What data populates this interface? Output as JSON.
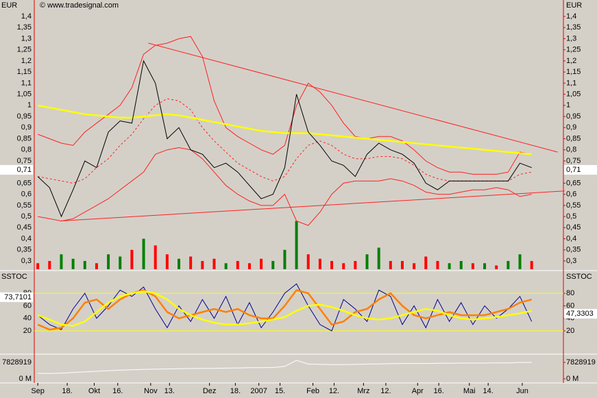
{
  "header": {
    "currency": "EUR",
    "copyright": "© www.tradesignal.com"
  },
  "chart_data": [
    {
      "type": "line",
      "x": [
        0,
        1,
        2,
        3,
        4,
        5,
        6,
        7,
        8,
        9,
        10,
        11,
        12,
        13,
        14,
        15,
        16,
        17,
        18,
        19,
        20,
        21,
        22,
        23,
        24,
        25,
        26,
        27,
        28,
        29,
        30,
        31,
        32,
        33,
        34,
        35,
        36,
        37,
        38,
        39,
        40,
        41,
        42
      ],
      "xlim": [
        -0.3,
        44.7
      ],
      "ylim": [
        0.263,
        1.474
      ],
      "yticks": [
        {
          "value": 1.4,
          "label": "1,4"
        },
        {
          "value": 1.35,
          "label": "1,35"
        },
        {
          "value": 1.3,
          "label": "1,3"
        },
        {
          "value": 1.25,
          "label": "1,25"
        },
        {
          "value": 1.2,
          "label": "1,2"
        },
        {
          "value": 1.15,
          "label": "1,15"
        },
        {
          "value": 1.1,
          "label": "1,1"
        },
        {
          "value": 1.05,
          "label": "1,05"
        },
        1,
        {
          "value": 0.95,
          "label": "0,95"
        },
        {
          "value": 0.9,
          "label": "0,9"
        },
        {
          "value": 0.85,
          "label": "0,85"
        },
        {
          "value": 0.8,
          "label": "0,8"
        },
        {
          "value": 0.75,
          "label": "0,75"
        },
        {
          "value": 0.65,
          "label": "0,65"
        },
        {
          "value": 0.6,
          "label": "0,6"
        },
        {
          "value": 0.55,
          "label": "0,55"
        },
        {
          "value": 0.5,
          "label": "0,5"
        },
        {
          "value": 0.45,
          "label": "0,45"
        },
        {
          "value": 0.4,
          "label": "0,4"
        },
        {
          "value": 0.35,
          "label": "0,35"
        },
        {
          "value": 0.3,
          "label": "0,3"
        }
      ],
      "grid": false,
      "last": {
        "value": 0.71,
        "label": "0,71"
      },
      "series": [
        {
          "color": "#ff2020",
          "style": "solid",
          "values": [
            0.87,
            0.85,
            0.83,
            0.82,
            0.88,
            0.92,
            0.96,
            1.0,
            1.08,
            1.23,
            1.27,
            1.28,
            1.3,
            1.31,
            1.22,
            1.02,
            0.9,
            0.86,
            0.83,
            0.8,
            0.78,
            0.82,
            1.0,
            1.1,
            1.06,
            1.0,
            0.92,
            0.86,
            0.85,
            0.86,
            0.86,
            0.84,
            0.8,
            0.75,
            0.72,
            0.7,
            0.7,
            0.69,
            0.69,
            0.69,
            0.7,
            0.79,
            0.78
          ]
        },
        {
          "color": "#ff2020",
          "style": "solid",
          "values": [
            0.5,
            0.49,
            0.48,
            0.49,
            0.52,
            0.55,
            0.58,
            0.62,
            0.66,
            0.7,
            0.78,
            0.8,
            0.81,
            0.8,
            0.76,
            0.7,
            0.64,
            0.6,
            0.57,
            0.55,
            0.55,
            0.6,
            0.48,
            0.46,
            0.52,
            0.6,
            0.65,
            0.66,
            0.66,
            0.66,
            0.67,
            0.66,
            0.64,
            0.61,
            0.6,
            0.6,
            0.61,
            0.62,
            0.62,
            0.63,
            0.62,
            0.59,
            0.6
          ]
        },
        {
          "color": "#ff2020",
          "style": "dashed",
          "values": [
            0.68,
            0.67,
            0.66,
            0.65,
            0.67,
            0.72,
            0.76,
            0.82,
            0.87,
            0.94,
            1.0,
            1.03,
            1.02,
            0.98,
            0.9,
            0.84,
            0.79,
            0.74,
            0.71,
            0.68,
            0.66,
            0.68,
            0.76,
            0.82,
            0.84,
            0.82,
            0.78,
            0.76,
            0.76,
            0.77,
            0.77,
            0.76,
            0.73,
            0.69,
            0.67,
            0.66,
            0.66,
            0.66,
            0.66,
            0.66,
            0.66,
            0.69,
            0.7
          ]
        },
        {
          "color": "#ffff00",
          "style": "thick",
          "values": [
            1.0,
            0.99,
            0.98,
            0.97,
            0.96,
            0.955,
            0.95,
            0.945,
            0.945,
            0.95,
            0.955,
            0.96,
            0.955,
            0.945,
            0.935,
            0.925,
            0.915,
            0.905,
            0.895,
            0.885,
            0.88,
            0.875,
            0.875,
            0.875,
            0.87,
            0.865,
            0.86,
            0.855,
            0.85,
            0.845,
            0.84,
            0.835,
            0.83,
            0.825,
            0.82,
            0.815,
            0.81,
            0.805,
            0.8,
            0.795,
            0.79,
            0.785,
            0.78
          ]
        },
        {
          "color": "#000000",
          "style": "solid",
          "values": [
            0.68,
            0.63,
            0.5,
            0.62,
            0.75,
            0.72,
            0.88,
            0.93,
            0.92,
            1.2,
            1.1,
            0.85,
            0.9,
            0.8,
            0.78,
            0.72,
            0.74,
            0.7,
            0.64,
            0.58,
            0.6,
            0.72,
            1.05,
            0.88,
            0.82,
            0.75,
            0.73,
            0.68,
            0.78,
            0.83,
            0.8,
            0.78,
            0.74,
            0.65,
            0.62,
            0.66,
            0.66,
            0.66,
            0.66,
            0.66,
            0.66,
            0.74,
            0.72
          ]
        }
      ],
      "volume": {
        "values": [
          0.29,
          0.3,
          0.33,
          0.31,
          0.3,
          0.29,
          0.33,
          0.32,
          0.35,
          0.4,
          0.37,
          0.33,
          0.31,
          0.32,
          0.3,
          0.31,
          0.29,
          0.3,
          0.29,
          0.31,
          0.3,
          0.35,
          0.48,
          0.33,
          0.31,
          0.3,
          0.29,
          0.3,
          0.33,
          0.36,
          0.3,
          0.3,
          0.29,
          0.32,
          0.3,
          0.29,
          0.3,
          0.29,
          0.29,
          0.28,
          0.3,
          0.33,
          0.3
        ],
        "colors": [
          "#ff0000",
          "#ff0000",
          "#008000",
          "#008000",
          "#008000",
          "#ff0000",
          "#008000",
          "#008000",
          "#ff0000",
          "#008000",
          "#ff0000",
          "#ff0000",
          "#008000",
          "#ff0000",
          "#ff0000",
          "#ff0000",
          "#008000",
          "#ff0000",
          "#ff0000",
          "#ff0000",
          "#008000",
          "#008000",
          "#008000",
          "#ff0000",
          "#ff0000",
          "#ff0000",
          "#ff0000",
          "#ff0000",
          "#008000",
          "#008000",
          "#ff0000",
          "#ff0000",
          "#ff0000",
          "#ff0000",
          "#ff0000",
          "#008000",
          "#008000",
          "#ff0000",
          "#008000",
          "#ff0000",
          "#008000",
          "#008000",
          "#ff0000"
        ]
      },
      "trendlines": [
        {
          "color": "#ff2020",
          "x": [
            1.9,
            44.8
          ],
          "values": [
            0.48,
            0.615
          ]
        },
        {
          "color": "#ff2020",
          "x": [
            9.4,
            44.2
          ],
          "values": [
            1.28,
            0.79
          ]
        }
      ]
    },
    {
      "type": "line",
      "title": "SSTOC",
      "x": [
        0,
        1,
        2,
        3,
        4,
        5,
        6,
        7,
        8,
        9,
        10,
        11,
        12,
        13,
        14,
        15,
        16,
        17,
        18,
        19,
        20,
        21,
        22,
        23,
        24,
        25,
        26,
        27,
        28,
        29,
        30,
        31,
        32,
        33,
        34,
        35,
        36,
        37,
        38,
        39,
        40,
        41,
        42
      ],
      "xlim": [
        -0.3,
        44.7
      ],
      "ylim": [
        -15,
        114
      ],
      "yticks": [
        20,
        40,
        60,
        80
      ],
      "grid": false,
      "hlines": [
        {
          "value": 80,
          "color": "#ffff00"
        },
        {
          "value": 20,
          "color": "#ffff00"
        }
      ],
      "markers": [
        {
          "value": 73.7101,
          "label": "73,7101",
          "side": "left"
        },
        {
          "value": 47.3303,
          "label": "47,3303",
          "side": "right"
        }
      ],
      "series": [
        {
          "color": "#000090",
          "style": "solid",
          "values": [
            45,
            30,
            22,
            55,
            80,
            40,
            60,
            85,
            75,
            90,
            55,
            25,
            60,
            35,
            70,
            40,
            75,
            30,
            65,
            25,
            50,
            80,
            95,
            60,
            30,
            20,
            70,
            55,
            35,
            85,
            75,
            30,
            60,
            25,
            70,
            35,
            65,
            30,
            60,
            40,
            55,
            75,
            35
          ]
        },
        {
          "color": "#ff8000",
          "style": "thick",
          "values": [
            30,
            22,
            25,
            40,
            65,
            70,
            55,
            70,
            80,
            85,
            75,
            50,
            40,
            45,
            50,
            55,
            50,
            55,
            45,
            40,
            40,
            60,
            85,
            80,
            55,
            30,
            35,
            50,
            55,
            70,
            80,
            60,
            45,
            40,
            45,
            50,
            45,
            45,
            45,
            50,
            55,
            65,
            70
          ]
        },
        {
          "color": "#ffff00",
          "style": "thick",
          "values": [
            45,
            38,
            30,
            28,
            35,
            50,
            65,
            75,
            80,
            83,
            80,
            70,
            55,
            45,
            38,
            33,
            30,
            30,
            32,
            35,
            38,
            42,
            52,
            60,
            62,
            58,
            52,
            45,
            40,
            38,
            40,
            45,
            50,
            55,
            52,
            45,
            40,
            38,
            40,
            42,
            45,
            48,
            52
          ]
        }
      ]
    },
    {
      "type": "line",
      "x": [
        0,
        1,
        2,
        3,
        4,
        5,
        6,
        7,
        8,
        9,
        10,
        11,
        12,
        13,
        14,
        15,
        16,
        17,
        18,
        19,
        20,
        21,
        22,
        23,
        24,
        25,
        26,
        27,
        28,
        29,
        30,
        31,
        32,
        33,
        34,
        35,
        36,
        37,
        38,
        39,
        40,
        41,
        42
      ],
      "xlim": [
        -0.3,
        44.7
      ],
      "ylim": [
        -1300000,
        11090000
      ],
      "yticks": [
        {
          "value": 0,
          "label": "0 M"
        },
        7828919
      ],
      "grid": false,
      "xticks": [
        {
          "value": 0,
          "label": "Sep"
        },
        {
          "value": 2.5,
          "label": "18."
        },
        {
          "value": 4.8,
          "label": "Okt"
        },
        {
          "value": 6.8,
          "label": "16."
        },
        {
          "value": 9.6,
          "label": "Nov"
        },
        {
          "value": 11.2,
          "label": "13."
        },
        {
          "value": 14.6,
          "label": "Dez"
        },
        {
          "value": 16.8,
          "label": "18."
        },
        {
          "value": 18.8,
          "label": "2007"
        },
        {
          "value": 20.6,
          "label": "15."
        },
        {
          "value": 23.4,
          "label": "Feb"
        },
        {
          "value": 25.2,
          "label": "12."
        },
        {
          "value": 27.7,
          "label": "Mrz"
        },
        {
          "value": 29.6,
          "label": "12."
        },
        {
          "value": 32.3,
          "label": "Apr"
        },
        {
          "value": 34.1,
          "label": "16."
        },
        {
          "value": 36.7,
          "label": "Mai"
        },
        {
          "value": 38.3,
          "label": "14."
        },
        {
          "value": 41.2,
          "label": "Jun"
        }
      ],
      "series": [
        {
          "color": "#ffffff",
          "style": "solid",
          "values": [
            2600000,
            2500000,
            2700000,
            3000000,
            3300000,
            3600000,
            3900000,
            4100000,
            4300000,
            4500000,
            4600000,
            4700000,
            4800000,
            4900000,
            5000000,
            5000000,
            5100000,
            5200000,
            5300000,
            5300000,
            5400000,
            5900000,
            8800000,
            7000000,
            6900000,
            6800000,
            6800000,
            6900000,
            7000000,
            7100000,
            7200000,
            7300000,
            7300000,
            7300000,
            7400000,
            7400000,
            7500000,
            7500000,
            7500000,
            7600000,
            7600000,
            7800000,
            7828919
          ]
        }
      ]
    }
  ]
}
